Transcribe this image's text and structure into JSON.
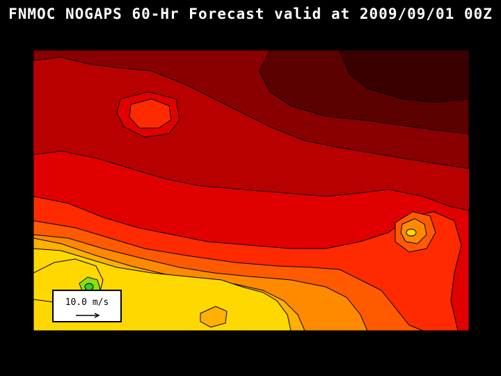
{
  "title": "FNMOC NOGAPS 60-Hr Forecast valid at 2009/09/01 00Z",
  "legend": {
    "speed_label": "10.0 m/s"
  },
  "colors": {
    "background": "#000000",
    "contour_line": "#000000",
    "levels": [
      "#3a0000",
      "#5c0000",
      "#8a0000",
      "#b80000",
      "#e00000",
      "#ff2a00",
      "#ff5a00",
      "#ff8a00",
      "#ffb000",
      "#ffd800",
      "#8ee000",
      "#33cc33"
    ]
  }
}
